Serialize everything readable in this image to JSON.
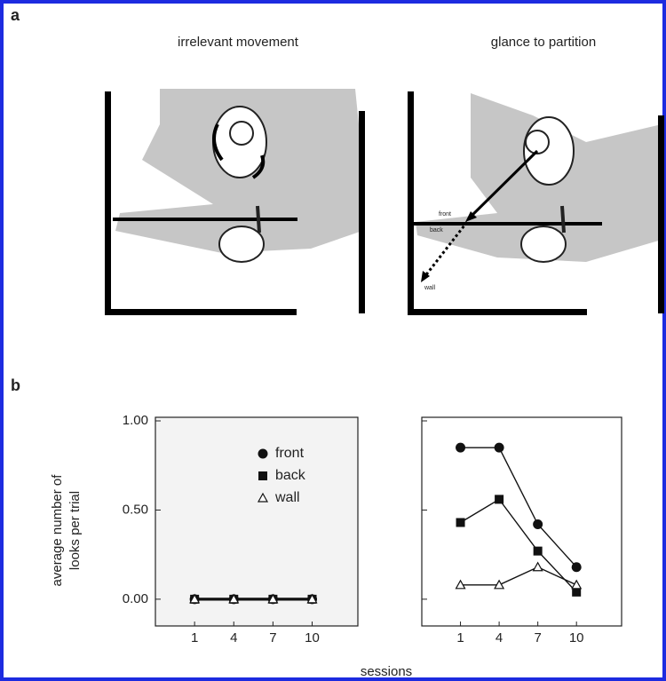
{
  "panel_a": {
    "label": "a",
    "left_title": "irrelevant movement",
    "right_title": "glance to partition",
    "annotations": [
      "front",
      "back",
      "wall"
    ]
  },
  "panel_b_label": "b",
  "chart_data": [
    {
      "type": "line",
      "ylabel": [
        "average number of",
        "looks per trial"
      ],
      "xlabel": "sessions",
      "x": [
        1,
        4,
        7,
        10
      ],
      "xlim": [
        -2,
        13.5
      ],
      "xticks": [
        1,
        4,
        7,
        10
      ],
      "ylim": [
        -0.15,
        1.02
      ],
      "yticks": [
        {
          "value": 0,
          "label": "0.00"
        },
        {
          "value": 0.5,
          "label": "0.50"
        },
        {
          "value": 1,
          "label": "1.00"
        }
      ],
      "color": "#111111",
      "series": [
        {
          "name": "front",
          "marker": "circle",
          "values": [
            0,
            0,
            0,
            0
          ]
        },
        {
          "name": "back",
          "marker": "square",
          "values": [
            0,
            0,
            0,
            0
          ]
        },
        {
          "name": "wall",
          "marker": "triangle",
          "values": [
            0,
            0,
            0,
            0
          ]
        }
      ]
    },
    {
      "type": "line",
      "x": [
        1,
        4,
        7,
        10
      ],
      "xlim": [
        -2,
        13.5
      ],
      "xticks": [
        1,
        4,
        7,
        10
      ],
      "ylim": [
        -0.15,
        1.02
      ],
      "yticks": [
        0,
        0.5,
        1
      ],
      "color": "#111111",
      "series": [
        {
          "marker": "circle",
          "values": [
            0.85,
            0.85,
            0.42,
            0.18
          ]
        },
        {
          "marker": "square",
          "values": [
            0.43,
            0.56,
            0.27,
            0.04
          ]
        },
        {
          "marker": "triangle",
          "values": [
            0.08,
            0.08,
            0.18,
            0.08
          ]
        }
      ]
    }
  ]
}
